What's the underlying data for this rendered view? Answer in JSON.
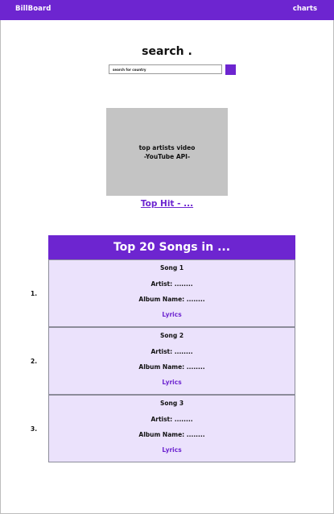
{
  "header": {
    "brand": "BillBoard",
    "charts_link": "charts"
  },
  "search": {
    "title": "search .",
    "placeholder": "search for country"
  },
  "video": {
    "line1": "top artists video",
    "line2": "-YouTube API-"
  },
  "top_hit": "Top Hit - ...",
  "songs_table": {
    "title": "Top 20 Songs in ...",
    "songs": [
      {
        "number": "1.",
        "title": "Song 1",
        "artist": "Artist: ........",
        "album": "Album Name: ........",
        "lyrics": "Lyrics"
      },
      {
        "number": "2.",
        "title": "Song 2",
        "artist": "Artist: ........",
        "album": "Album Name: ........",
        "lyrics": "Lyrics"
      },
      {
        "number": "3.",
        "title": "Song 3",
        "artist": "Artist: ........",
        "album": "Album Name: ........",
        "lyrics": "Lyrics"
      }
    ]
  },
  "colors": {
    "accent": "#6d25d0",
    "card_background": "#ebe2fc",
    "video_placeholder": "#c4c4c4"
  }
}
